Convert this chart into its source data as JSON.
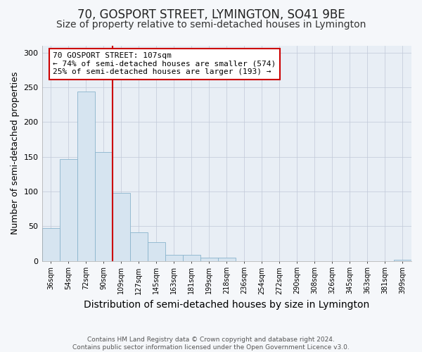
{
  "title1": "70, GOSPORT STREET, LYMINGTON, SO41 9BE",
  "title2": "Size of property relative to semi-detached houses in Lymington",
  "xlabel": "Distribution of semi-detached houses by size in Lymington",
  "ylabel": "Number of semi-detached properties",
  "categories": [
    "36sqm",
    "54sqm",
    "72sqm",
    "90sqm",
    "109sqm",
    "127sqm",
    "145sqm",
    "163sqm",
    "181sqm",
    "199sqm",
    "218sqm",
    "236sqm",
    "254sqm",
    "272sqm",
    "290sqm",
    "308sqm",
    "326sqm",
    "345sqm",
    "363sqm",
    "381sqm",
    "399sqm"
  ],
  "values": [
    47,
    147,
    244,
    157,
    98,
    41,
    27,
    9,
    9,
    5,
    5,
    0,
    0,
    0,
    0,
    0,
    0,
    0,
    0,
    0,
    2
  ],
  "bar_color": "#d6e4f0",
  "bar_edge_color": "#8ab4cc",
  "red_line_index": 4,
  "annotation_line1": "70 GOSPORT STREET: 107sqm",
  "annotation_line2": "← 74% of semi-detached houses are smaller (574)",
  "annotation_line3": "25% of semi-detached houses are larger (193) →",
  "annotation_box_color": "#ffffff",
  "annotation_box_edge": "#cc0000",
  "red_line_color": "#cc0000",
  "ylim": [
    0,
    310
  ],
  "yticks": [
    0,
    50,
    100,
    150,
    200,
    250,
    300
  ],
  "footer": "Contains HM Land Registry data © Crown copyright and database right 2024.\nContains public sector information licensed under the Open Government Licence v3.0.",
  "title1_fontsize": 12,
  "title2_fontsize": 10,
  "xlabel_fontsize": 10,
  "ylabel_fontsize": 9,
  "background_color": "#f5f7fa",
  "plot_bg_color": "#e8eef5"
}
